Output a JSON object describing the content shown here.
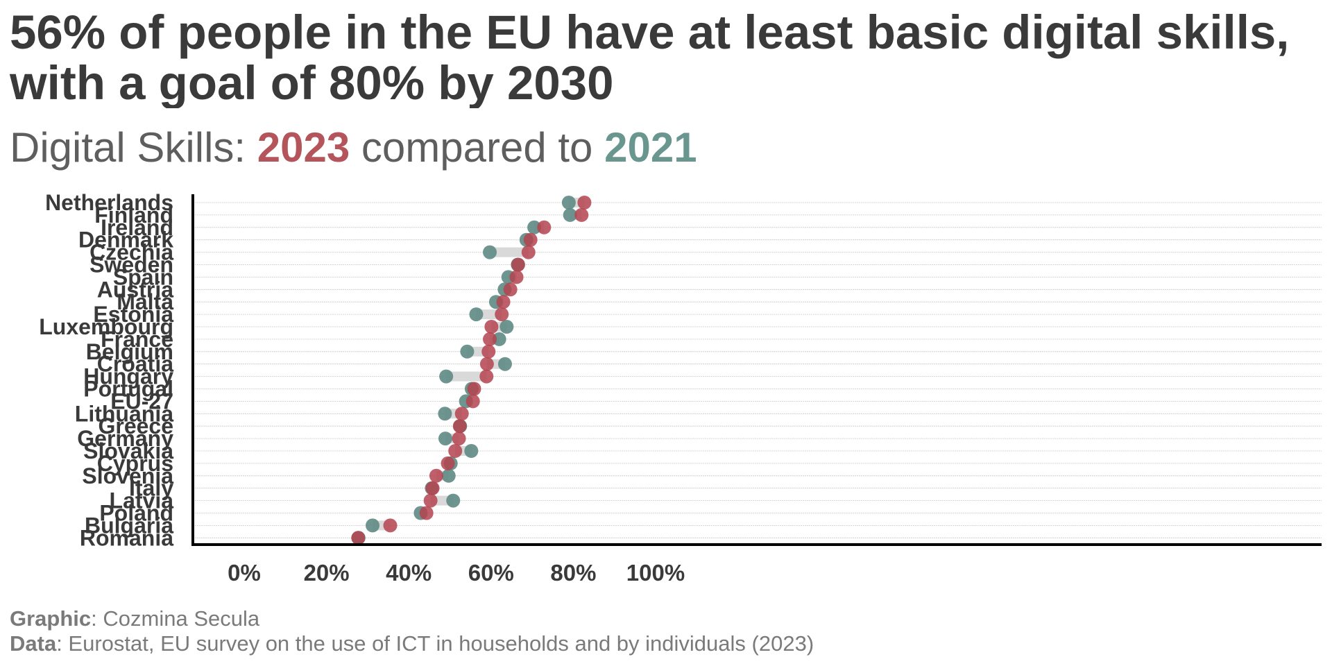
{
  "title": {
    "line1": "56% of people in the EU have at least basic digital skills,",
    "line2": "with a goal of 80% by 2030"
  },
  "subtitle": {
    "prefix": "Digital Skills: ",
    "year_a": "2023",
    "middle": " compared to ",
    "year_b": "2021"
  },
  "footer": {
    "graphic_label": "Graphic",
    "graphic_value": ": Cozmina Secula",
    "data_label": "Data",
    "data_value": ": Eurostat, EU survey on the use of ICT in households and by individuals (2023)"
  },
  "colors": {
    "y2023": "#b4434f",
    "y2021": "#5e8a84",
    "connector": "#d9d9d9",
    "text": "#3a3a3a"
  },
  "chart_data": {
    "type": "dumbbell",
    "xlim": [
      -12,
      105
    ],
    "x_ticks": [
      0,
      20,
      40,
      60,
      80,
      100
    ],
    "x_tick_labels": [
      "0%",
      "20%",
      "40%",
      "60%",
      "80%",
      "100%"
    ],
    "grid": true,
    "series": [
      {
        "name": "2023",
        "key": "v2023"
      },
      {
        "name": "2021",
        "key": "v2021"
      }
    ],
    "categories": [
      {
        "label": "Netherlands",
        "v2023": 82.7,
        "v2021": 78.9
      },
      {
        "label": "Finland",
        "v2023": 82.0,
        "v2021": 79.2
      },
      {
        "label": "Ireland",
        "v2023": 72.9,
        "v2021": 70.5
      },
      {
        "label": "Denmark",
        "v2023": 69.6,
        "v2021": 68.6
      },
      {
        "label": "Czechia",
        "v2023": 69.1,
        "v2021": 59.7
      },
      {
        "label": "Sweden",
        "v2023": 66.6,
        "v2021": 66.5
      },
      {
        "label": "Spain",
        "v2023": 66.2,
        "v2021": 64.2
      },
      {
        "label": "Austria",
        "v2023": 64.7,
        "v2021": 63.3
      },
      {
        "label": "Malta",
        "v2023": 63.0,
        "v2021": 61.2
      },
      {
        "label": "Estonia",
        "v2023": 62.6,
        "v2021": 56.4
      },
      {
        "label": "Luxembourg",
        "v2023": 60.1,
        "v2021": 63.8
      },
      {
        "label": "France",
        "v2023": 59.7,
        "v2021": 62.0
      },
      {
        "label": "Belgium",
        "v2023": 59.4,
        "v2021": 54.2
      },
      {
        "label": "Croatia",
        "v2023": 59.0,
        "v2021": 63.4
      },
      {
        "label": "Hungary",
        "v2023": 58.9,
        "v2021": 49.1
      },
      {
        "label": "Portugal",
        "v2023": 55.9,
        "v2021": 55.3
      },
      {
        "label": "EU-27",
        "v2023": 55.6,
        "v2021": 53.9
      },
      {
        "label": "Lithuania",
        "v2023": 52.9,
        "v2021": 48.8
      },
      {
        "label": "Greece",
        "v2023": 52.4,
        "v2021": 52.5
      },
      {
        "label": "Germany",
        "v2023": 52.2,
        "v2021": 48.9
      },
      {
        "label": "Slovakia",
        "v2023": 51.3,
        "v2021": 55.2
      },
      {
        "label": "Cyprus",
        "v2023": 49.5,
        "v2021": 50.2
      },
      {
        "label": "Slovenia",
        "v2023": 46.7,
        "v2021": 49.7
      },
      {
        "label": "Italy",
        "v2023": 45.8,
        "v2021": 45.6
      },
      {
        "label": "Latvia",
        "v2023": 45.3,
        "v2021": 50.8
      },
      {
        "label": "Poland",
        "v2023": 44.3,
        "v2021": 42.9
      },
      {
        "label": "Bulgaria",
        "v2023": 35.5,
        "v2021": 31.2
      },
      {
        "label": "Romania",
        "v2023": 27.7,
        "v2021": 27.8
      }
    ]
  }
}
